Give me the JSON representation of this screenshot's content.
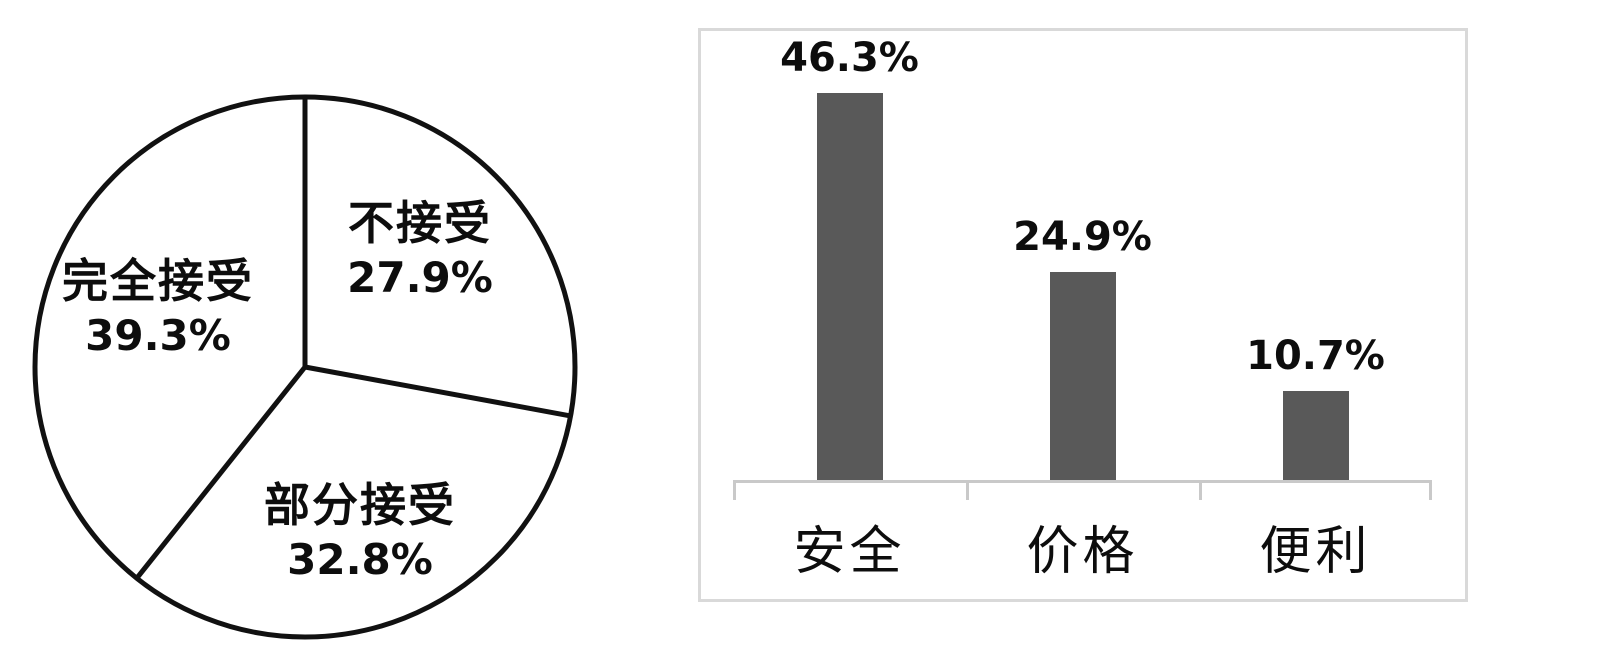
{
  "chart_data": [
    {
      "type": "pie",
      "title": "",
      "slices": [
        {
          "label": "不接受",
          "value": 27.9,
          "value_label": "27.9%"
        },
        {
          "label": "部分接受",
          "value": 32.8,
          "value_label": "32.8%"
        },
        {
          "label": "完全接受",
          "value": 39.3,
          "value_label": "39.3%"
        }
      ],
      "start_angle_deg": 0,
      "direction": "clockwise",
      "slice_fill": "#ffffff",
      "outline_color": "#111111",
      "legend": "none",
      "labels_inside": true
    },
    {
      "type": "bar",
      "categories": [
        "安全",
        "价格",
        "便利"
      ],
      "values": [
        46.3,
        24.9,
        10.7
      ],
      "value_labels": [
        "46.3%",
        "24.9%",
        "10.7%"
      ],
      "ylim": [
        0,
        54
      ],
      "grid": "off",
      "legend": "none",
      "value_label_position": "above-bar",
      "bar_color": "#595959",
      "axis_color": "#c9c9c9",
      "panel_border_color": "#d9d9d9"
    }
  ]
}
